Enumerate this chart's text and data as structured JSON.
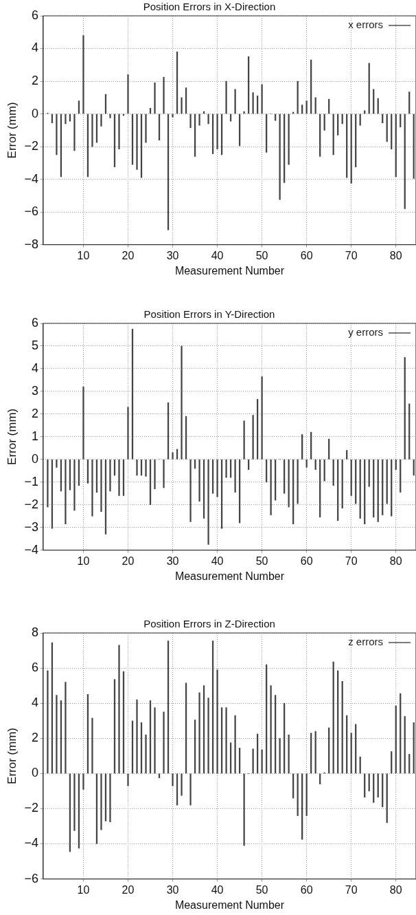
{
  "chart_data": [
    {
      "type": "bar",
      "title": "Position Errors in X-Direction",
      "xlabel": "Measurement Number",
      "ylabel": "Error (mm)",
      "legend": "top right",
      "grid": true,
      "x": [
        2,
        3,
        4,
        5,
        6,
        7,
        8,
        9,
        10,
        11,
        12,
        13,
        14,
        15,
        16,
        17,
        18,
        19,
        20,
        21,
        22,
        23,
        24,
        25,
        26,
        27,
        28,
        29,
        30,
        31,
        32,
        33,
        34,
        35,
        36,
        37,
        38,
        39,
        40,
        41,
        42,
        43,
        44,
        45,
        46,
        47,
        48,
        49,
        50,
        51,
        52,
        53,
        54,
        55,
        56,
        57,
        58,
        59,
        60,
        61,
        62,
        63,
        64,
        65,
        66,
        67,
        68,
        69,
        70,
        71,
        72,
        73,
        74,
        75,
        76,
        77,
        78,
        79,
        80,
        81,
        82,
        83,
        84
      ],
      "xlim": [
        1,
        84.5
      ],
      "xticks": [
        10,
        20,
        30,
        40,
        50,
        60,
        70,
        80
      ],
      "ylim": [
        -8,
        6
      ],
      "yticks": [
        -8,
        -6,
        -4,
        -2,
        0,
        2,
        4,
        6
      ],
      "series": [
        {
          "name": "x errors",
          "color": "#444444",
          "values": [
            0.05,
            -0.55,
            -2.5,
            -3.85,
            -0.6,
            -0.45,
            -2.25,
            0.8,
            4.8,
            -3.85,
            -2.0,
            -1.75,
            -0.75,
            1.2,
            -0.25,
            -3.25,
            -2.15,
            -0.1,
            2.4,
            -3.1,
            -3.4,
            -3.9,
            -1.75,
            0.35,
            1.9,
            -1.6,
            2.25,
            -7.1,
            -0.2,
            3.8,
            1.0,
            1.6,
            -0.85,
            -2.6,
            -0.7,
            0.15,
            -0.6,
            -2.45,
            -2.15,
            -2.5,
            2.0,
            -0.45,
            1.5,
            -1.95,
            0.15,
            3.5,
            1.3,
            1.1,
            1.8,
            -2.35,
            0,
            -0.4,
            -5.25,
            -4.2,
            -3.1,
            0.1,
            2.0,
            0.55,
            0.8,
            3.3,
            1.0,
            -2.6,
            -1.0,
            0.9,
            -2.5,
            -1.3,
            -0.6,
            -3.9,
            -4.25,
            -3.25,
            -0.7,
            0.2,
            3.1,
            1.5,
            0.95,
            -0.55,
            -1.7,
            -2.15,
            -3.85,
            -0.8,
            -5.8,
            1.35,
            -3.95
          ]
        }
      ]
    },
    {
      "type": "bar",
      "title": "Position Errors in Y-Direction",
      "xlabel": "Measurement Number",
      "ylabel": "Error (mm)",
      "legend": "top right",
      "grid": true,
      "x": [
        2,
        3,
        4,
        5,
        6,
        7,
        8,
        9,
        10,
        11,
        12,
        13,
        14,
        15,
        16,
        17,
        18,
        19,
        20,
        21,
        22,
        23,
        24,
        25,
        26,
        27,
        28,
        29,
        30,
        31,
        32,
        33,
        34,
        35,
        36,
        37,
        38,
        39,
        40,
        41,
        42,
        43,
        44,
        45,
        46,
        47,
        48,
        49,
        50,
        51,
        52,
        53,
        54,
        55,
        56,
        57,
        58,
        59,
        60,
        61,
        62,
        63,
        64,
        65,
        66,
        67,
        68,
        69,
        70,
        71,
        72,
        73,
        74,
        75,
        76,
        77,
        78,
        79,
        80,
        81,
        82,
        83,
        84
      ],
      "xlim": [
        1,
        84.5
      ],
      "xticks": [
        10,
        20,
        30,
        40,
        50,
        60,
        70,
        80
      ],
      "ylim": [
        -4,
        6
      ],
      "yticks": [
        -4,
        -3,
        -2,
        -1,
        0,
        1,
        2,
        3,
        4,
        5,
        6
      ],
      "series": [
        {
          "name": "y errors",
          "color": "#444444",
          "values": [
            -2.1,
            -3.05,
            -0.35,
            -1.4,
            -2.85,
            -1.35,
            -2.25,
            -1.15,
            3.2,
            -1.05,
            -2.5,
            -1.45,
            -2.3,
            -3.3,
            -1.4,
            -0.7,
            -1.6,
            -1.6,
            2.3,
            5.75,
            -0.7,
            -0.7,
            -0.75,
            -2.0,
            -1.3,
            0,
            -1.25,
            2.5,
            0.3,
            0.45,
            5.0,
            1.9,
            -2.75,
            -0.4,
            -1.85,
            -2.6,
            -3.75,
            -1.5,
            -1.65,
            -3.05,
            -0.8,
            -0.8,
            -1.45,
            -2.8,
            1.7,
            -0.45,
            1.95,
            2.65,
            3.65,
            -1.0,
            -2.45,
            -1.8,
            0,
            -1.5,
            -2.1,
            -2.85,
            -1.95,
            1.1,
            -0.35,
            1.2,
            -0.45,
            -2.55,
            -0.95,
            0.9,
            -1.15,
            -2.7,
            -2.15,
            0.4,
            -1.6,
            -1.95,
            -2.6,
            -2.85,
            -1.2,
            -2.55,
            -2.75,
            -2.45,
            -1.95,
            -2.5,
            -0.45,
            -1.45,
            4.5,
            2.45,
            -0.7
          ]
        }
      ]
    },
    {
      "type": "bar",
      "title": "Position Errors in Z-Direction",
      "xlabel": "Measurement Number",
      "ylabel": "Error (mm)",
      "legend": "top right",
      "grid": true,
      "x": [
        2,
        3,
        4,
        5,
        6,
        7,
        8,
        9,
        10,
        11,
        12,
        13,
        14,
        15,
        16,
        17,
        18,
        19,
        20,
        21,
        22,
        23,
        24,
        25,
        26,
        27,
        28,
        29,
        30,
        31,
        32,
        33,
        34,
        35,
        36,
        37,
        38,
        39,
        40,
        41,
        42,
        43,
        44,
        45,
        46,
        47,
        48,
        49,
        50,
        51,
        52,
        53,
        54,
        55,
        56,
        57,
        58,
        59,
        60,
        61,
        62,
        63,
        64,
        65,
        66,
        67,
        68,
        69,
        70,
        71,
        72,
        73,
        74,
        75,
        76,
        77,
        78,
        79,
        80,
        81,
        82,
        83,
        84
      ],
      "xlim": [
        1,
        84.5
      ],
      "xticks": [
        10,
        20,
        30,
        40,
        50,
        60,
        70,
        80
      ],
      "ylim": [
        -6,
        8
      ],
      "yticks": [
        -6,
        -4,
        -2,
        0,
        2,
        4,
        6,
        8
      ],
      "series": [
        {
          "name": "z errors",
          "color": "#444444",
          "values": [
            5.85,
            7.45,
            4.45,
            4.15,
            5.2,
            -4.45,
            -3.25,
            -4.25,
            -0.9,
            4.5,
            3.15,
            -4.0,
            -3.2,
            -2.7,
            -2.75,
            5.35,
            7.3,
            5.8,
            -0.7,
            3.0,
            4.2,
            2.9,
            2.2,
            4.15,
            3.75,
            -0.25,
            3.5,
            7.55,
            -0.7,
            -1.8,
            -1.25,
            5.15,
            -1.8,
            3.05,
            4.6,
            5.0,
            4.3,
            7.55,
            5.9,
            3.75,
            3.75,
            1.75,
            3.3,
            1.45,
            -4.1,
            0,
            1.4,
            2.25,
            1.35,
            6.2,
            5.0,
            4.45,
            2.0,
            4.0,
            2.2,
            -1.4,
            -2.4,
            -3.75,
            -2.4,
            2.3,
            2.4,
            -0.6,
            0.05,
            2.6,
            6.35,
            5.85,
            5.25,
            3.3,
            2.3,
            2.8,
            0.95,
            -1.35,
            -1.0,
            -1.65,
            -1.35,
            -1.9,
            -2.8,
            1.25,
            3.85,
            4.55,
            3.25,
            1.1,
            2.9
          ]
        }
      ]
    }
  ]
}
